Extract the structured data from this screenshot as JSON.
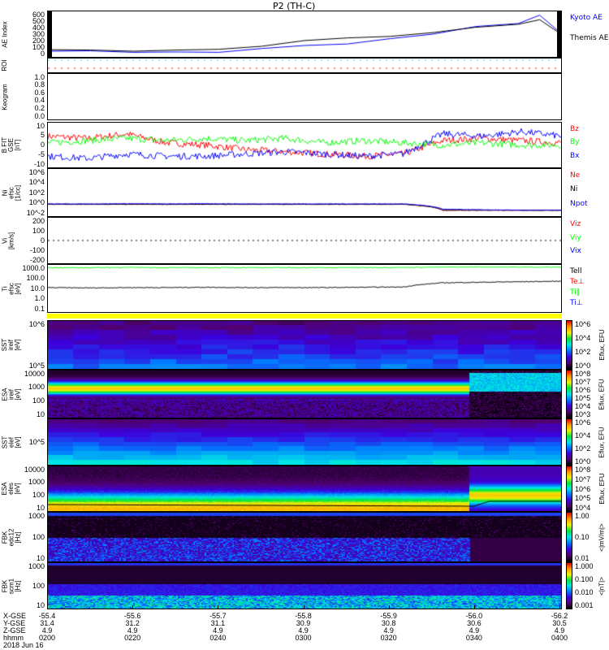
{
  "title": "P2 (TH-C)",
  "chart_data": [
    {
      "type": "line",
      "name": "ae",
      "ylabel": "AE Index",
      "ylim": [
        0,
        600
      ],
      "yticks": [
        "600",
        "500",
        "400",
        "300",
        "200",
        "100",
        "0"
      ],
      "x": [
        "0200",
        "0210",
        "0220",
        "0230",
        "0240",
        "0250",
        "0300",
        "0310",
        "0320",
        "0330",
        "0340",
        "0350",
        "0355",
        "0400"
      ],
      "series": [
        {
          "name": "Kyoto AE",
          "color": "#0000ff",
          "values": [
            75,
            80,
            60,
            65,
            60,
            110,
            150,
            170,
            240,
            300,
            400,
            440,
            550,
            310
          ]
        },
        {
          "name": "Themis AE",
          "color": "#000000",
          "values": [
            95,
            90,
            75,
            90,
            100,
            140,
            215,
            250,
            270,
            320,
            390,
            430,
            490,
            300
          ]
        }
      ]
    },
    {
      "type": "line",
      "name": "roi",
      "ylabel": "ROI"
    },
    {
      "type": "line",
      "name": "keogram",
      "ylabel": "Keogram",
      "yticks": [
        "1.0",
        "0.8",
        "0.6",
        "0.4",
        "0.2",
        "0.0"
      ]
    },
    {
      "type": "line",
      "name": "bfield",
      "ylabel": "B FIT\nGSE\n[nT]",
      "ylim": [
        -10,
        10
      ],
      "yticks": [
        "10",
        "5",
        "0",
        "-5",
        "-10"
      ],
      "series": [
        {
          "name": "Bz",
          "color": "#ff0000",
          "values": [
            4,
            3,
            5,
            1,
            0,
            -2,
            -3,
            -4,
            -5,
            -4,
            2,
            3,
            2,
            1
          ]
        },
        {
          "name": "By",
          "color": "#00ff00",
          "values": [
            1,
            2,
            3,
            2,
            3,
            2,
            3,
            1,
            2,
            1,
            0,
            1,
            0,
            0
          ]
        },
        {
          "name": "Bx",
          "color": "#0000ff",
          "values": [
            -5,
            -6,
            -4,
            -5,
            -5,
            -4,
            -3,
            -4,
            -5,
            -4,
            5,
            4,
            6,
            4
          ]
        }
      ]
    },
    {
      "type": "line",
      "name": "density",
      "ylabel": "Ni\nefsc\n[1/cc]",
      "yticks": [
        "10^6",
        "10^4",
        "10^2",
        "10^0",
        "10^-2"
      ],
      "ylim_log": [
        -2,
        6
      ],
      "series": [
        {
          "name": "Ne",
          "color": "#ff0000",
          "values": [
            1,
            1,
            1,
            1,
            1,
            1,
            1,
            1,
            1,
            1,
            0.1,
            0.1,
            0.1,
            0.1
          ]
        },
        {
          "name": "Ni",
          "color": "#000000",
          "values": [
            1,
            1,
            1,
            1,
            1,
            1,
            1,
            1,
            1,
            1,
            0.1,
            0.1,
            0.1,
            0.1
          ]
        },
        {
          "name": "Npot",
          "color": "#0000ff",
          "values": [
            1.2,
            1.2,
            1.3,
            1.2,
            1.3,
            1.2,
            1.2,
            1.2,
            1.2,
            1.2,
            0.15,
            0.12,
            0.1,
            0.1
          ]
        }
      ]
    },
    {
      "type": "line",
      "name": "velocity",
      "ylabel": "Vi\n[km/s]",
      "ylim": [
        -250,
        250
      ],
      "yticks": [
        "200",
        "100",
        "0",
        "-100",
        "-200"
      ],
      "series": [
        {
          "name": "Viz",
          "color": "#ff0000"
        },
        {
          "name": "Viy",
          "color": "#00ff00"
        },
        {
          "name": "Vix",
          "color": "#0000ff"
        }
      ]
    },
    {
      "type": "line",
      "name": "temperature",
      "ylabel": "Ti\nefsc\n[eV]",
      "yticks": [
        "1000.0",
        "100.0",
        "10.0",
        "1.0",
        "0.1"
      ],
      "ylim_log": [
        -1,
        3.2
      ],
      "series": [
        {
          "name": "Tell",
          "color": "#000000",
          "values": [
            15,
            14,
            15,
            15,
            16,
            15,
            15,
            15,
            16,
            17,
            40,
            45,
            50,
            55
          ]
        },
        {
          "name": "Te⊥",
          "color": "#ff0000"
        },
        {
          "name": "Ti‖",
          "color": "#00ff00",
          "values": [
            900,
            900,
            950,
            900,
            900,
            920,
            900,
            900,
            920,
            950,
            1000,
            1050,
            1000,
            1000
          ]
        },
        {
          "name": "Ti⊥",
          "color": "#0000ff"
        }
      ]
    },
    {
      "type": "heatmap",
      "name": "sst-ion",
      "ylabel": "SST\nireif\n[eV]",
      "yticks": [
        "10^6",
        "10^5"
      ],
      "colorbar": {
        "ticks": [
          "10^6",
          "10^4",
          "10^2",
          "10^0"
        ],
        "label": "Eflux, EFU"
      }
    },
    {
      "type": "heatmap",
      "name": "esa-ion",
      "ylabel": "ESA\nireif\n[eV]",
      "yticks": [
        "10000",
        "1000",
        "100",
        "10"
      ],
      "colorbar": {
        "ticks": [
          "10^8",
          "10^7",
          "10^6",
          "10^5",
          "10^4",
          "10^3"
        ],
        "label": "Eflux, EFU"
      }
    },
    {
      "type": "heatmap",
      "name": "sst-electron",
      "ylabel": "SST\nelef\n[eV]",
      "yticks": [
        "10^5"
      ],
      "colorbar": {
        "ticks": [
          "10^6",
          "10^4",
          "10^2",
          "10^0"
        ],
        "label": "Eflux, EFU"
      }
    },
    {
      "type": "heatmap",
      "name": "esa-electron",
      "ylabel": "ESA\neles\n[eV]",
      "yticks": [
        "10000",
        "1000",
        "100",
        "10"
      ],
      "colorbar": {
        "ticks": [
          "10^8",
          "10^7",
          "10^6",
          "10^5",
          "10^4"
        ],
        "label": "Eflux, EFU"
      }
    },
    {
      "type": "heatmap",
      "name": "fbk-edc12",
      "ylabel": "FBK\nedc12\n[Hz]",
      "yticks": [
        "1000",
        "100",
        "10"
      ],
      "colorbar": {
        "ticks": [
          "1.00",
          "0.10",
          "0.01"
        ],
        "label": "<|mV/m|>"
      }
    },
    {
      "type": "heatmap",
      "name": "fbk-scm1",
      "ylabel": "FBK\nscm1\n[Hz]",
      "yticks": [
        "1000",
        "100",
        "10"
      ],
      "colorbar": {
        "ticks": [
          "1.000",
          "0.100",
          "0.010",
          "0.001"
        ],
        "label": "<|nT|>"
      }
    }
  ],
  "axis": {
    "row_labels": [
      "X-GSE",
      "Y-GSE",
      "Z-GSE",
      "hhmm"
    ],
    "date": "2018 Jun 16",
    "ticks": [
      {
        "x": "-55.4",
        "y": "31.4",
        "z": "4.9",
        "t": "0200"
      },
      {
        "x": "-55.6",
        "y": "31.2",
        "z": "4.9",
        "t": "0220"
      },
      {
        "x": "-55.7",
        "y": "31.1",
        "z": "4.9",
        "t": "0240"
      },
      {
        "x": "-55.8",
        "y": "30.9",
        "z": "4.9",
        "t": "0300"
      },
      {
        "x": "-55.9",
        "y": "30.8",
        "z": "4.9",
        "t": "0320"
      },
      {
        "x": "-56.0",
        "y": "30.6",
        "z": "4.9",
        "t": "0340"
      },
      {
        "x": "-56.2",
        "y": "30.5",
        "z": "4.9",
        "t": "0400"
      }
    ]
  }
}
